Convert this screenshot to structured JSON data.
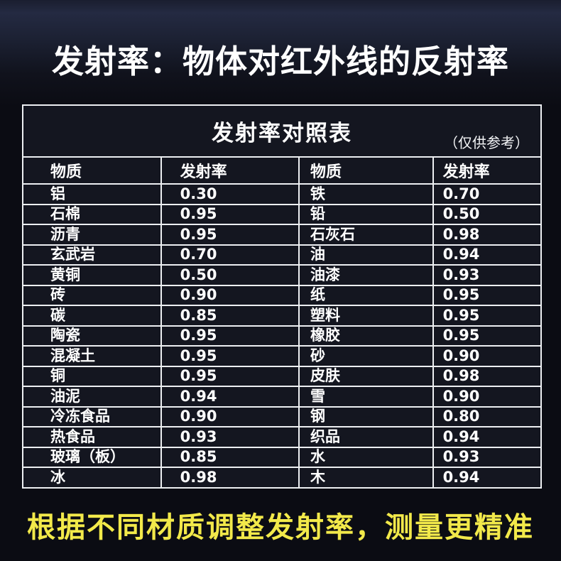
{
  "colors": {
    "page_background": "#0b0c13",
    "background_top_glow": "#242a42",
    "table_background": "#141620",
    "table_border": "#edeff2",
    "text_white": "#ffffff",
    "accent_yellow": "#f2e94a"
  },
  "header": {
    "title": "发射率：物体对红外线的反射率"
  },
  "footer": {
    "note": "根据不同材质调整发射率，测量更精准"
  },
  "chart_data": {
    "type": "table",
    "title": "发射率对照表",
    "note": "（仅供参考）",
    "columns": [
      "物质",
      "发射率",
      "物质",
      "发射率"
    ],
    "rows": [
      [
        "铝",
        "0.30",
        "铁",
        "0.70"
      ],
      [
        "石棉",
        "0.95",
        "铅",
        "0.50"
      ],
      [
        "沥青",
        "0.95",
        "石灰石",
        "0.98"
      ],
      [
        "玄武岩",
        "0.70",
        "油",
        "0.94"
      ],
      [
        "黄铜",
        "0.50",
        "油漆",
        "0.93"
      ],
      [
        "砖",
        "0.90",
        "纸",
        "0.95"
      ],
      [
        "碳",
        "0.85",
        "塑料",
        "0.95"
      ],
      [
        "陶瓷",
        "0.95",
        "橡胶",
        "0.95"
      ],
      [
        "混凝土",
        "0.95",
        "砂",
        "0.90"
      ],
      [
        "铜",
        "0.95",
        "皮肤",
        "0.98"
      ],
      [
        "油泥",
        "0.94",
        "雪",
        "0.90"
      ],
      [
        "冷冻食品",
        "0.90",
        "钢",
        "0.80"
      ],
      [
        "热食品",
        "0.93",
        "织品",
        "0.94"
      ],
      [
        "玻璃（板）",
        "0.85",
        "水",
        "0.93"
      ],
      [
        "冰",
        "0.98",
        "木",
        "0.94"
      ]
    ]
  }
}
